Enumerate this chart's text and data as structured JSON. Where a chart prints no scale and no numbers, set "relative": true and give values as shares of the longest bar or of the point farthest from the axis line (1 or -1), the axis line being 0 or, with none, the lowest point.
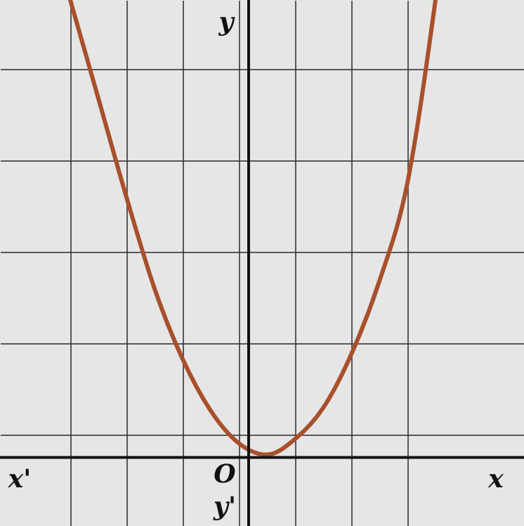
{
  "chart_data": {
    "type": "line",
    "relative": true,
    "categories": [
      null,
      null,
      null,
      null,
      null,
      null,
      null,
      null,
      null,
      null,
      null,
      null,
      null,
      null
    ],
    "series": [
      {
        "color": "#a8502c",
        "values": [
          1,
          0.785,
          0.569,
          0.369,
          0.215,
          0.102,
          0.031,
          0.006,
          0.04,
          0.108,
          0.225,
          0.385,
          0.6,
          1
        ]
      }
    ],
    "xlabel": "x",
    "ylabel": "y",
    "annotations": [
      "x'",
      "y'",
      "O"
    ],
    "grid": true,
    "marker": "none",
    "line_style": "solid"
  }
}
